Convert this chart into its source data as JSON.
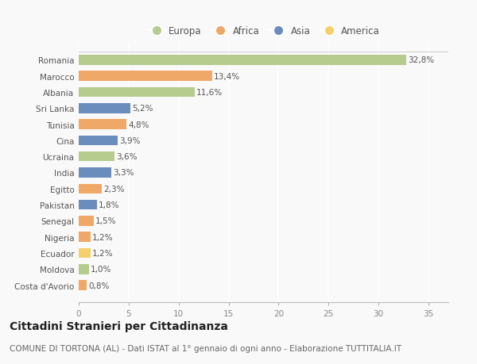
{
  "countries": [
    "Costa d'Avorio",
    "Moldova",
    "Ecuador",
    "Nigeria",
    "Senegal",
    "Pakistan",
    "Egitto",
    "India",
    "Ucraina",
    "Cina",
    "Tunisia",
    "Sri Lanka",
    "Albania",
    "Marocco",
    "Romania"
  ],
  "values": [
    0.8,
    1.0,
    1.2,
    1.2,
    1.5,
    1.8,
    2.3,
    3.3,
    3.6,
    3.9,
    4.8,
    5.2,
    11.6,
    13.4,
    32.8
  ],
  "labels": [
    "0,8%",
    "1,0%",
    "1,2%",
    "1,2%",
    "1,5%",
    "1,8%",
    "2,3%",
    "3,3%",
    "3,6%",
    "3,9%",
    "4,8%",
    "5,2%",
    "11,6%",
    "13,4%",
    "32,8%"
  ],
  "continents": [
    "Africa",
    "Europa",
    "America",
    "Africa",
    "Africa",
    "Asia",
    "Africa",
    "Asia",
    "Europa",
    "Asia",
    "Africa",
    "Asia",
    "Europa",
    "Africa",
    "Europa"
  ],
  "continent_colors": {
    "Europa": "#b5cc8e",
    "Africa": "#f0a868",
    "Asia": "#6b8dbd",
    "America": "#f5d06a"
  },
  "legend_labels": [
    "Europa",
    "Africa",
    "Asia",
    "America"
  ],
  "legend_colors": [
    "#b5cc8e",
    "#f0a868",
    "#6b8dbd",
    "#f5d06a"
  ],
  "title": "Cittadini Stranieri per Cittadinanza",
  "subtitle": "COMUNE DI TORTONA (AL) - Dati ISTAT al 1° gennaio di ogni anno - Elaborazione TUTTITALIA.IT",
  "xlim": [
    0,
    37
  ],
  "xticks": [
    0,
    5,
    10,
    15,
    20,
    25,
    30,
    35
  ],
  "background_color": "#f9f9f9",
  "grid_color": "#ffffff",
  "bar_height": 0.62,
  "title_fontsize": 10,
  "subtitle_fontsize": 7.5,
  "label_fontsize": 7.5,
  "tick_fontsize": 7.5,
  "legend_fontsize": 8.5
}
